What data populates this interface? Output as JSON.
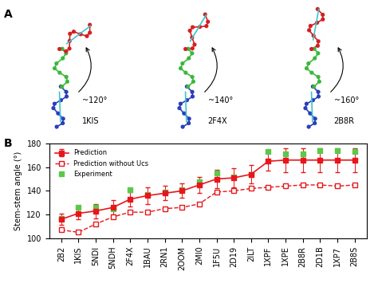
{
  "panel_labels": [
    "A",
    "B"
  ],
  "structures": [
    {
      "name": "1KIS",
      "angle_label": "~120°"
    },
    {
      "name": "2F4X",
      "angle_label": "~140°"
    },
    {
      "name": "2B8R",
      "angle_label": "~160°"
    }
  ],
  "chart_data": {
    "type": "line",
    "y_label": "Stem-stem angle (°)",
    "categories": [
      "2B2",
      "1KIS",
      "5NDI",
      "5NDH",
      "2F4X",
      "1BAU",
      "2RN1",
      "2OOM",
      "2MI0",
      "1F5U",
      "2D19",
      "2ILT",
      "1XPF",
      "1XPE",
      "2B8R",
      "2D1B",
      "1XP7",
      "2B8S"
    ],
    "ylim": [
      100,
      180
    ],
    "yticks": [
      100,
      120,
      140,
      160,
      180
    ],
    "legend": "upper left",
    "series": [
      {
        "name": "Prediction",
        "color": "#e8161b",
        "marker": "square",
        "line_style": "solid",
        "values": [
          116,
          121,
          123,
          126,
          133,
          136,
          138,
          140,
          145,
          150,
          151,
          154,
          165,
          166,
          166,
          166,
          166,
          166
        ],
        "errors": [
          5,
          5,
          6,
          6,
          6,
          7,
          6,
          6,
          7,
          8,
          8,
          8,
          8,
          10,
          10,
          10,
          10,
          10
        ]
      },
      {
        "name": "Prediction without Ucs",
        "color": "#e8161b",
        "marker": "open_square",
        "line_style": "dashed",
        "values": [
          107,
          105,
          112,
          118,
          122,
          122,
          125,
          126,
          129,
          139,
          140,
          142,
          143,
          144,
          145,
          145,
          144,
          145
        ]
      },
      {
        "name": "Experiment",
        "color": "#5cc84a",
        "marker": "square",
        "line_style": "none",
        "values": [
          117,
          126,
          126,
          125,
          141,
          137,
          139,
          141,
          148,
          155,
          152,
          154,
          173,
          171,
          171,
          174,
          174,
          173
        ]
      }
    ]
  }
}
